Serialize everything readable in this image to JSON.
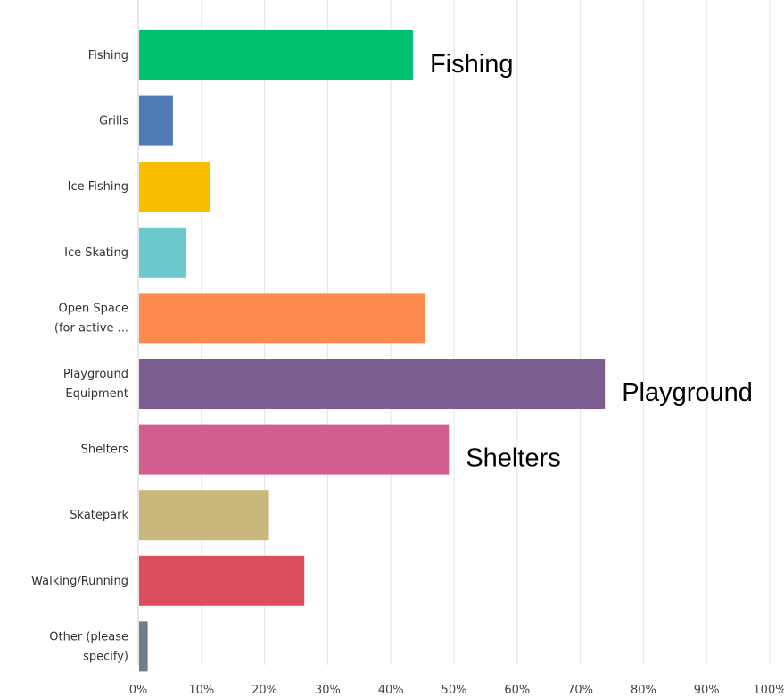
{
  "chart_data": {
    "type": "bar",
    "orientation": "horizontal",
    "categories": [
      [
        "Fishing"
      ],
      [
        "Grills"
      ],
      [
        "Ice Fishing"
      ],
      [
        "Ice Skating"
      ],
      [
        "Open Space",
        "(for active ..."
      ],
      [
        "Playground",
        "Equipment"
      ],
      [
        "Shelters"
      ],
      [
        "Skatepark"
      ],
      [
        "Walking/Running"
      ],
      [
        "Other (please",
        "specify)"
      ]
    ],
    "values": [
      43.5,
      5.5,
      11.3,
      7.5,
      45.4,
      73.9,
      49.2,
      20.7,
      26.3,
      1.5
    ],
    "colors": [
      "#00bf6f",
      "#507cb6",
      "#f9be00",
      "#6bc8cd",
      "#ff8b4f",
      "#7d5e90",
      "#d25f90",
      "#c9b77b",
      "#dc4e5f",
      "#6e7d86"
    ],
    "xlim": [
      0,
      100
    ],
    "xticks": [
      0,
      10,
      20,
      30,
      40,
      50,
      60,
      70,
      80,
      90,
      100
    ],
    "tick_suffix": "%",
    "grid": true,
    "annotations": [
      {
        "text": "Fishing",
        "category_index": 0
      },
      {
        "text": "Playground",
        "category_index": 5
      },
      {
        "text": "Shelters",
        "category_index": 6
      }
    ]
  }
}
